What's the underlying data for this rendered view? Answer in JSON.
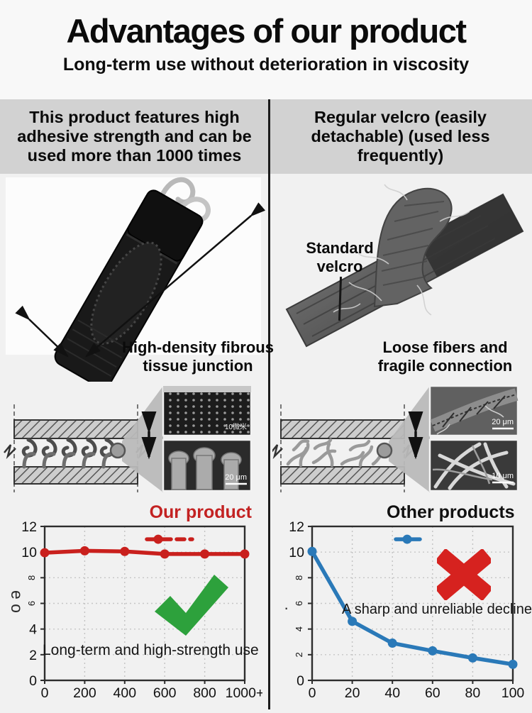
{
  "page_title": "Advantages of our product",
  "page_subtitle": "Long-term use without deterioration in viscosity",
  "left_column": {
    "header": "This product features high adhesive strength and can be used more than 1000 times",
    "photo_caption": "High-density fibrous tissue junction",
    "micrograph_labels": {
      "top": "10微米",
      "bottom": "20 μm"
    },
    "y_axis_fragment": "e o",
    "result_icon": "green-checkmark"
  },
  "right_column": {
    "header": "Regular velcro (easily detachable) (used less frequently)",
    "photo_label": "Standard velcro",
    "photo_caption": "Loose fibers and fragile connection",
    "micrograph_labels": {
      "top": "20 μm",
      "bottom": "10 μm"
    },
    "y_axis_fragment": "·",
    "result_icon": "red-cross"
  },
  "colors": {
    "accent_red": "#c9201d",
    "accent_green": "#2da13c",
    "accent_blue": "#2a79b8",
    "header_band": "#d2d2d2",
    "divider": "#1b1b1b"
  },
  "chart_data": [
    {
      "type": "line",
      "title": "Our product",
      "annotation": "Long-term and high-strength use",
      "color": "#c9201d",
      "x": [
        0,
        200,
        400,
        600,
        800,
        1000
      ],
      "x_tick_labels": [
        "0",
        "200",
        "400",
        "600",
        "800",
        "1000+"
      ],
      "values": [
        9.95,
        10.1,
        10.05,
        9.85,
        9.85,
        9.85
      ],
      "ylim": [
        0,
        12
      ],
      "y_ticks": [
        0,
        2,
        4,
        6,
        8,
        10,
        12
      ],
      "rotated_y_ticks": [
        8,
        6
      ],
      "xlabel": "",
      "ylabel": "",
      "grid": "dashed",
      "legend": {
        "style": "line-dot-plus-dash",
        "y_value": 11
      }
    },
    {
      "type": "line",
      "title": "Other products",
      "annotation": "A sharp and unreliable decline",
      "color": "#2a79b8",
      "x": [
        0,
        20,
        40,
        60,
        80,
        100
      ],
      "x_tick_labels": [
        "0",
        "20",
        "40",
        "60",
        "80",
        "100"
      ],
      "values": [
        10.05,
        4.6,
        2.9,
        2.3,
        1.75,
        1.25
      ],
      "ylim": [
        0,
        12
      ],
      "y_ticks": [
        0,
        2,
        4,
        6,
        8,
        10,
        12
      ],
      "rotated_y_ticks": [
        8,
        6,
        4,
        2
      ],
      "xlabel": "",
      "ylabel": "",
      "grid": "dashed",
      "legend": {
        "style": "line-dot",
        "y_value": 11
      }
    }
  ]
}
